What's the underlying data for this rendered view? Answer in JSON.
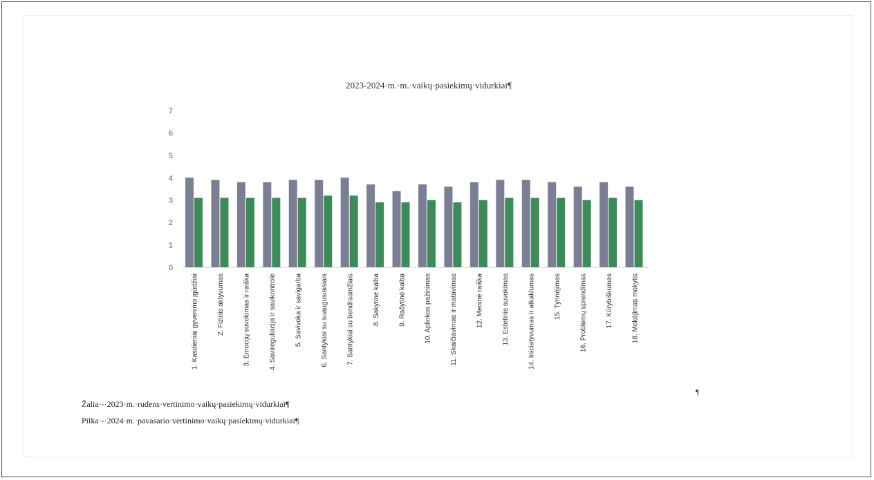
{
  "chart_data": {
    "type": "bar",
    "title": "2023-2024·m.·m.·vaikų·pasiekimų·vidurkiai¶",
    "xlabel": "",
    "ylabel": "",
    "ylim": [
      0,
      7
    ],
    "yticks": [
      "0",
      "1",
      "2",
      "3",
      "4",
      "5",
      "6",
      "7"
    ],
    "grid": false,
    "legend": "none",
    "categories": [
      "1. Kasdieniai gyvenimo įgūdžiai",
      "2. Fizinis aktyvumas",
      "3. Emocijų suvokimas ir raiška",
      "4. Savireguliacija ir savikontrolė",
      "5. Savivoka ir savigarba",
      "6. Santykiai su suaugusiaisiais",
      "7. Santykiai su bendraamžiais",
      "8. Sakytinė kalba",
      "9. Rašytinė kalba",
      "10. Aplinkos pažinimas",
      "11. Skaičiavimas ir matavimas",
      "12. Meninė raiška",
      "13. Estetinis suvokimas",
      "14. Iniciatyvumas ir atkaklumas",
      "15. Tyrinėjimas",
      "16. Problemų sprendimas",
      "17. Kūrybiškumas",
      "18. Mokėjimas mokytis"
    ],
    "series": [
      {
        "color": "#7b7f93",
        "values": [
          4.0,
          3.9,
          3.8,
          3.8,
          3.9,
          3.9,
          4.0,
          3.7,
          3.4,
          3.7,
          3.6,
          3.8,
          3.9,
          3.9,
          3.8,
          3.6,
          3.8,
          3.6
        ]
      },
      {
        "color": "#3f8a5a",
        "values": [
          3.1,
          3.1,
          3.1,
          3.1,
          3.1,
          3.2,
          3.2,
          2.9,
          2.9,
          3.0,
          2.9,
          3.0,
          3.1,
          3.1,
          3.1,
          3.0,
          3.1,
          3.0
        ]
      }
    ]
  },
  "notes": {
    "green": "Žalia·-·2023·m.·rudens·vertinimo·vaikų·pasiekimų·vidurkiai¶",
    "gray": "Pilka·-·2024·m.·pavasario·vertinimo·vaikų·pasiekimų·vidurkiai¶",
    "pilcrow": "¶"
  }
}
